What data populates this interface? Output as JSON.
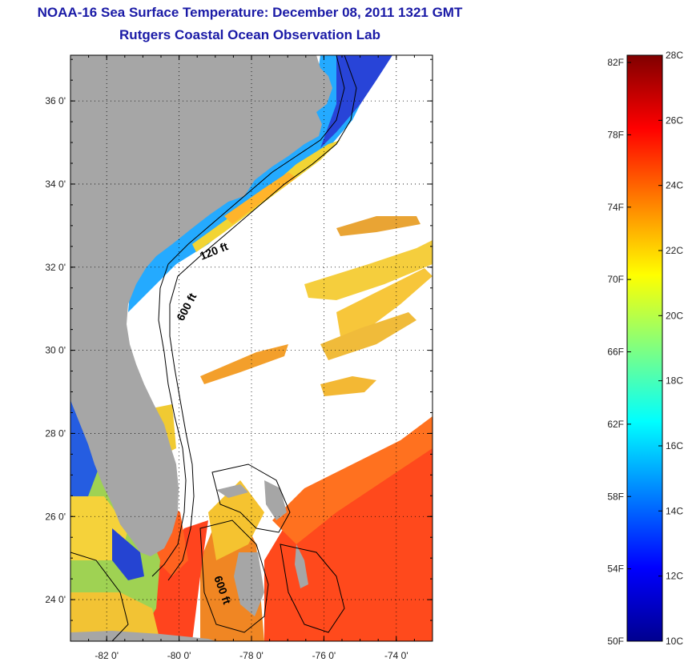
{
  "header": {
    "title": "NOAA-16 Sea Surface Temperature:  December 08, 2011 1321 GMT",
    "subtitle": "Rutgers Coastal Ocean Observation Lab"
  },
  "map": {
    "lat_range": [
      23.0,
      37.1
    ],
    "lon_range": [
      -83.0,
      -73.0
    ],
    "lat_ticks": [
      {
        "value": 24,
        "label": "24 0'"
      },
      {
        "value": 26,
        "label": "26 0'"
      },
      {
        "value": 28,
        "label": "28 0'"
      },
      {
        "value": 30,
        "label": "30 0'"
      },
      {
        "value": 32,
        "label": "32 0'"
      },
      {
        "value": 34,
        "label": "34 0'"
      },
      {
        "value": 36,
        "label": "36 0'"
      }
    ],
    "lon_ticks": [
      {
        "value": -82,
        "label": "-82 0'"
      },
      {
        "value": -80,
        "label": "-80 0'"
      },
      {
        "value": -78,
        "label": "-78 0'"
      },
      {
        "value": -76,
        "label": "-76 0'"
      },
      {
        "value": -74,
        "label": "-74 0'"
      }
    ],
    "grid": "dotted",
    "land_color": "#a6a6a6",
    "contour_labels": [
      {
        "text": "120 ft",
        "lon": -79.0,
        "lat": 32.3
      },
      {
        "text": "600 ft",
        "lon": -79.7,
        "lat": 31.0
      },
      {
        "text": "600 ft",
        "lon": -78.9,
        "lat": 24.2
      }
    ]
  },
  "colorbar": {
    "min_c": 10,
    "max_c": 28,
    "celsius_labels": [
      "28C",
      "26C",
      "24C",
      "22C",
      "20C",
      "18C",
      "16C",
      "14C",
      "12C",
      "10C"
    ],
    "fahrenheit_labels": [
      "82F",
      "78F",
      "74F",
      "70F",
      "66F",
      "62F",
      "58F",
      "54F",
      "50F"
    ],
    "colors": [
      "#00008f",
      "#0000ff",
      "#0080ff",
      "#00ffff",
      "#80ff80",
      "#ffff00",
      "#ff8000",
      "#ff0000",
      "#800000"
    ]
  }
}
